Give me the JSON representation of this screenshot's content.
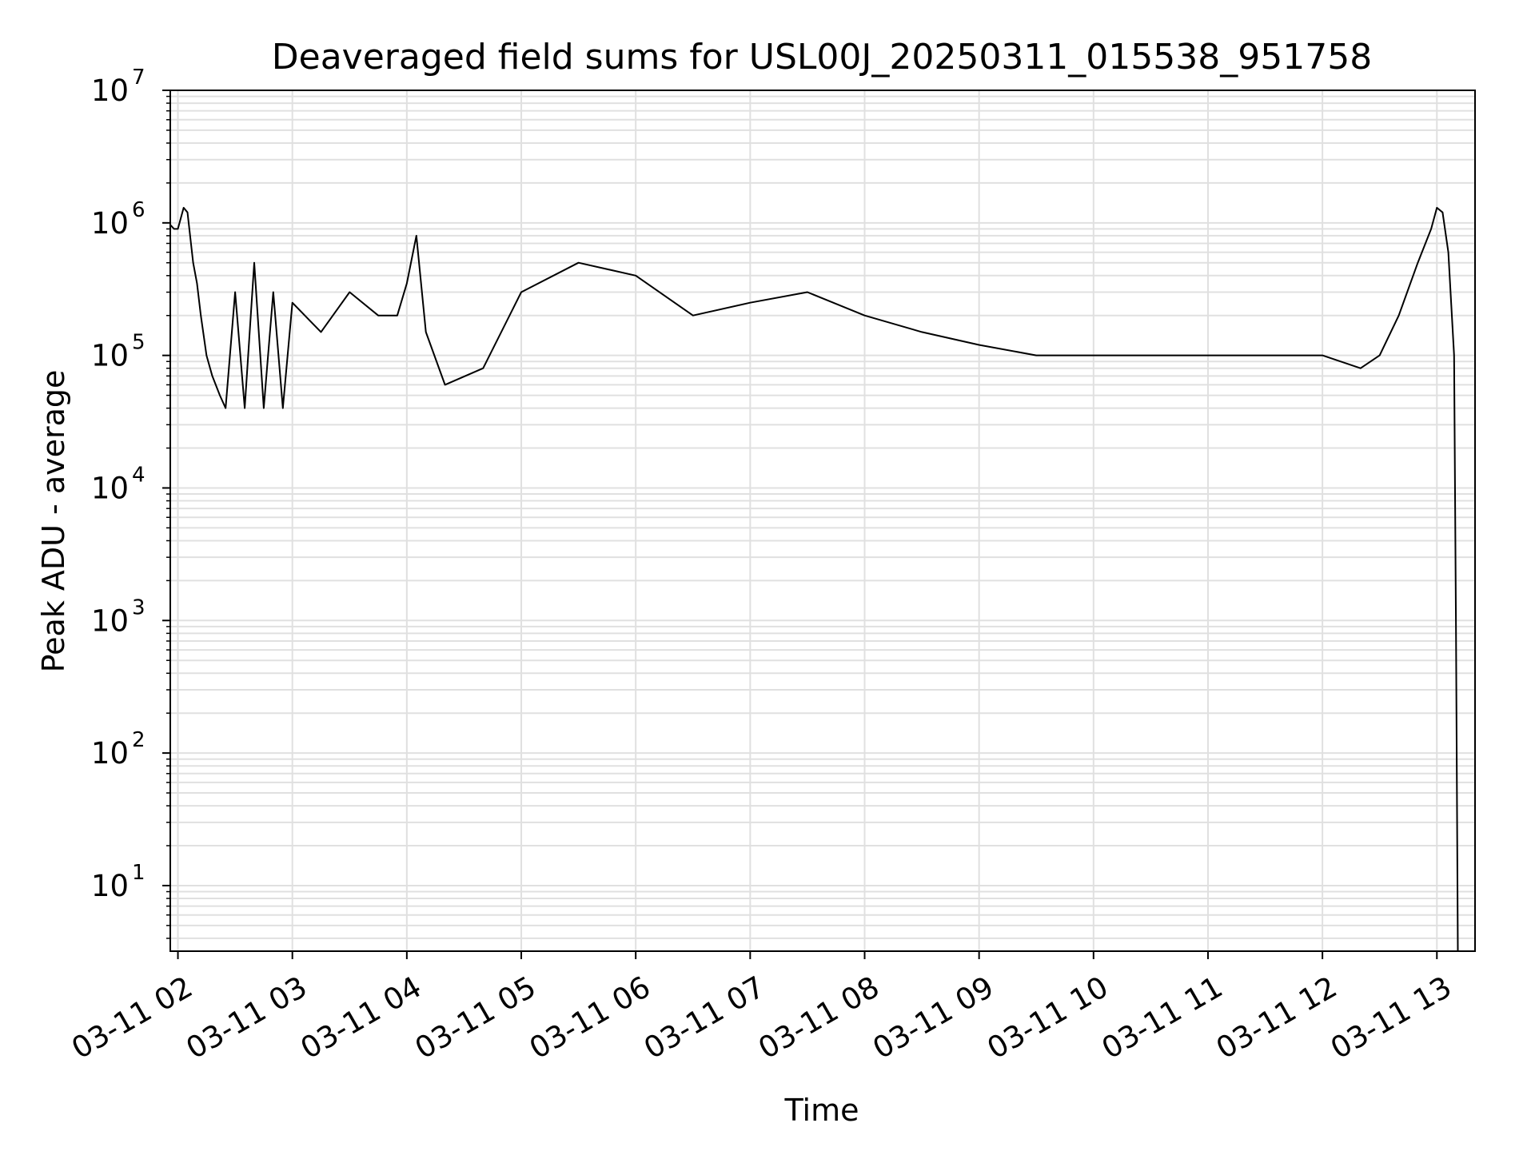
{
  "chart_data": {
    "type": "line",
    "title": "Deaveraged field sums for USL00J_20250311_015538_951758",
    "xlabel": "Time",
    "ylabel": "Peak ADU - average",
    "y_scale": "log",
    "ylim": [
      3.2,
      10000000
    ],
    "y_ticks": [
      {
        "value": 10,
        "base": "10",
        "exp": "1"
      },
      {
        "value": 100,
        "base": "10",
        "exp": "2"
      },
      {
        "value": 1000,
        "base": "10",
        "exp": "3"
      },
      {
        "value": 10000,
        "base": "10",
        "exp": "4"
      },
      {
        "value": 100000,
        "base": "10",
        "exp": "5"
      },
      {
        "value": 1000000,
        "base": "10",
        "exp": "6"
      },
      {
        "value": 10000000,
        "base": "10",
        "exp": "7"
      }
    ],
    "xlim": [
      "2025-03-11 01:56",
      "2025-03-11 13:20"
    ],
    "x_ticks": [
      {
        "value": "2025-03-11 02:00",
        "label": "03-11 02"
      },
      {
        "value": "2025-03-11 03:00",
        "label": "03-11 03"
      },
      {
        "value": "2025-03-11 04:00",
        "label": "03-11 04"
      },
      {
        "value": "2025-03-11 05:00",
        "label": "03-11 05"
      },
      {
        "value": "2025-03-11 06:00",
        "label": "03-11 06"
      },
      {
        "value": "2025-03-11 07:00",
        "label": "03-11 07"
      },
      {
        "value": "2025-03-11 08:00",
        "label": "03-11 08"
      },
      {
        "value": "2025-03-11 09:00",
        "label": "03-11 09"
      },
      {
        "value": "2025-03-11 10:00",
        "label": "03-11 10"
      },
      {
        "value": "2025-03-11 11:00",
        "label": "03-11 11"
      },
      {
        "value": "2025-03-11 12:00",
        "label": "03-11 12"
      },
      {
        "value": "2025-03-11 13:00",
        "label": "03-11 13"
      }
    ],
    "grid": true,
    "grid_color": "#e0e0e0",
    "line_color": "#000000",
    "series": [
      {
        "x": [
          "2025-03-11 01:55",
          "2025-03-11 01:58",
          "2025-03-11 02:00",
          "2025-03-11 02:03",
          "2025-03-11 02:05",
          "2025-03-11 02:08",
          "2025-03-11 02:10",
          "2025-03-11 02:12",
          "2025-03-11 02:15",
          "2025-03-11 02:18",
          "2025-03-11 02:22",
          "2025-03-11 02:25",
          "2025-03-11 02:30",
          "2025-03-11 02:35",
          "2025-03-11 02:40",
          "2025-03-11 02:45",
          "2025-03-11 02:50",
          "2025-03-11 02:55",
          "2025-03-11 03:00",
          "2025-03-11 03:15",
          "2025-03-11 03:30",
          "2025-03-11 03:45",
          "2025-03-11 03:55",
          "2025-03-11 04:00",
          "2025-03-11 04:05",
          "2025-03-11 04:10",
          "2025-03-11 04:20",
          "2025-03-11 04:40",
          "2025-03-11 05:00",
          "2025-03-11 05:30",
          "2025-03-11 06:00",
          "2025-03-11 06:30",
          "2025-03-11 07:00",
          "2025-03-11 07:30",
          "2025-03-11 08:00",
          "2025-03-11 08:30",
          "2025-03-11 09:00",
          "2025-03-11 09:30",
          "2025-03-11 10:00",
          "2025-03-11 10:30",
          "2025-03-11 11:00",
          "2025-03-11 11:30",
          "2025-03-11 12:00",
          "2025-03-11 12:20",
          "2025-03-11 12:30",
          "2025-03-11 12:40",
          "2025-03-11 12:50",
          "2025-03-11 12:57",
          "2025-03-11 13:00",
          "2025-03-11 13:03",
          "2025-03-11 13:06",
          "2025-03-11 13:09",
          "2025-03-11 13:10",
          "2025-03-11 13:11"
        ],
        "y": [
          1000000,
          900000,
          900000,
          1300000,
          1200000,
          500000,
          350000,
          200000,
          100000,
          70000,
          50000,
          40000,
          300000,
          40000,
          500000,
          40000,
          300000,
          40000,
          250000,
          150000,
          300000,
          200000,
          200000,
          350000,
          800000,
          150000,
          60000,
          80000,
          300000,
          500000,
          400000,
          200000,
          250000,
          300000,
          200000,
          150000,
          120000,
          100000,
          100000,
          100000,
          100000,
          100000,
          100000,
          80000,
          100000,
          200000,
          500000,
          900000,
          1300000,
          1200000,
          600000,
          100000,
          1000,
          3.2
        ]
      }
    ]
  }
}
